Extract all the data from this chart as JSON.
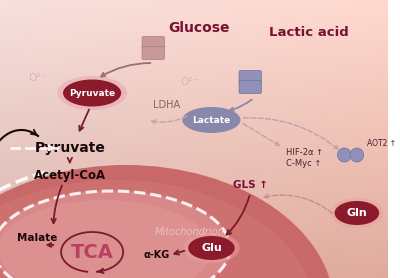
{
  "glucose_label": "Glucose",
  "lactic_acid_label": "Lactic acid",
  "ldha_label": "LDHA",
  "pyruvate_label_top": "Pyruvate",
  "pyruvate_label_inner": "Pyruvate",
  "acetyl_coa_label": "Acetyl-CoA",
  "tca_label": "TCA",
  "malate_label": "Malate",
  "alpha_kg_label": "α-KG",
  "glu_label": "Glu",
  "gln_label": "Gln",
  "lactate_label": "Lactate",
  "gls_label": "GLS ↑",
  "hif_label": "HIF-2α ↑",
  "cmyc_label": "C-Myc ↑",
  "mito_label": "Mitochondrion",
  "aot2_label": "AOT2 ↑",
  "o2_label1": "O²⁻",
  "o2_label2": "O²⁻",
  "text_dark": "#8b2252",
  "text_black": "#2a0a14",
  "arrow_dark": "#7a1a30",
  "arrow_mid": "#c08888",
  "arrow_purple": "#888899"
}
